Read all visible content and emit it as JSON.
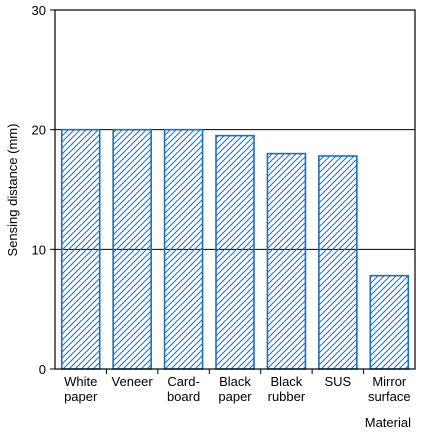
{
  "chart_data": {
    "type": "bar",
    "categories": [
      [
        "White",
        "paper"
      ],
      [
        "Veneer"
      ],
      [
        "Card-",
        "board"
      ],
      [
        "Black",
        "paper"
      ],
      [
        "Black",
        "rubber"
      ],
      [
        "SUS"
      ],
      [
        "Mirror",
        "surface"
      ]
    ],
    "values": [
      20,
      20,
      20,
      19.5,
      18,
      17.8,
      7.8
    ],
    "xlabel": "Material",
    "ylabel": "Sensing distance (mm)",
    "ylim": [
      0,
      30
    ],
    "yticks": [
      "0",
      "10",
      "20",
      "30"
    ],
    "grid": "horizontal at 10 and 20",
    "bar_style": "diagonal hatch",
    "colors": {
      "bar_stroke": "#1f6fb2",
      "axis": "#000000"
    }
  }
}
